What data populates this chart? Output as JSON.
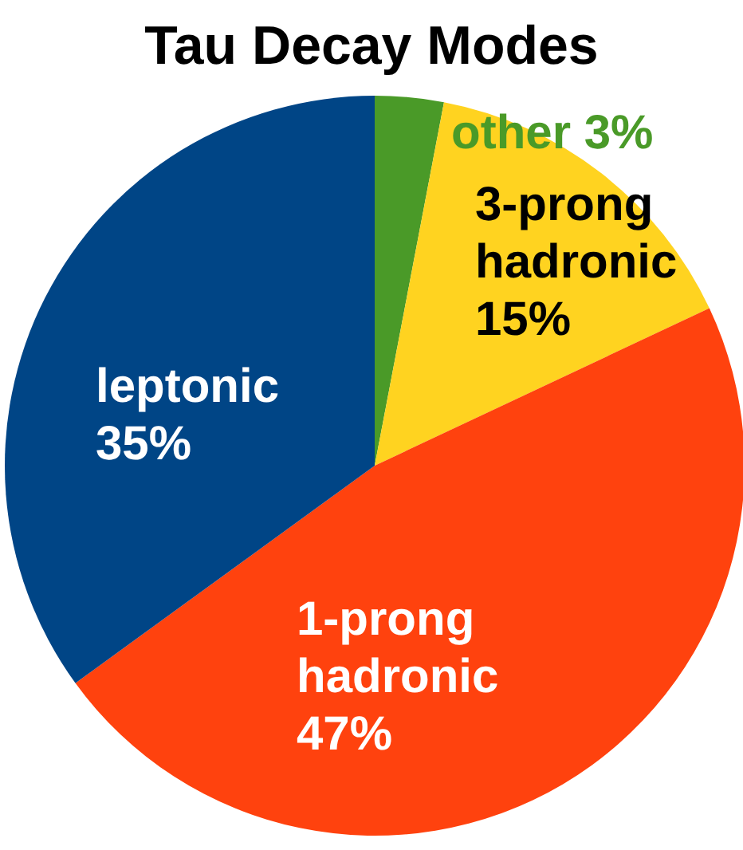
{
  "chart_data": {
    "type": "pie",
    "title": "Tau Decay Modes",
    "categories": [
      "other",
      "3-prong hadronic",
      "1-prong hadronic",
      "leptonic"
    ],
    "values": [
      3,
      15,
      47,
      35
    ],
    "colors": [
      "#4a9a28",
      "#ffd320",
      "#ff420e",
      "#004586"
    ],
    "value_labels": [
      "3%",
      "15%",
      "47%",
      "35%"
    ]
  }
}
